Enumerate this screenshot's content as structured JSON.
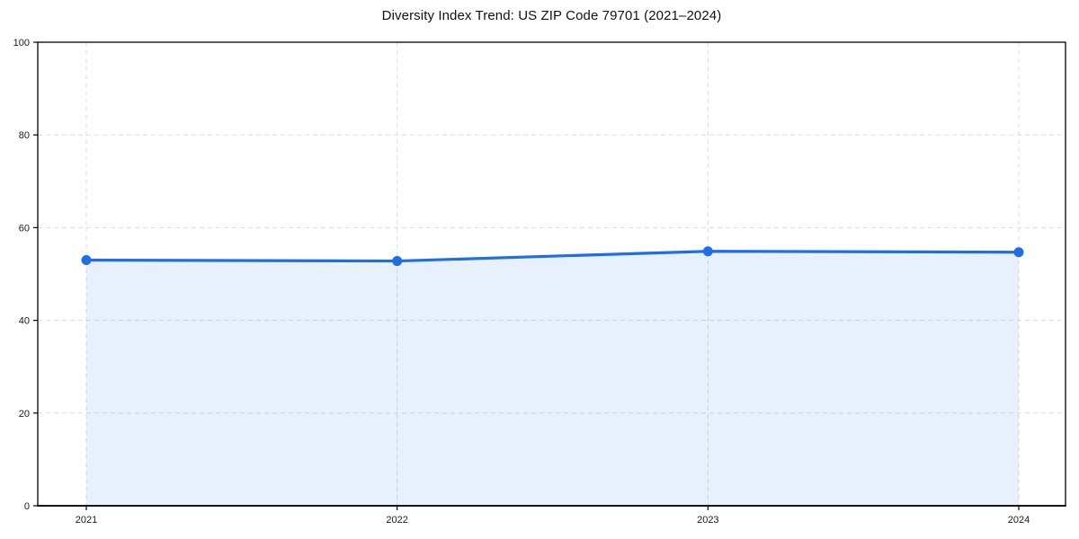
{
  "figure": {
    "background": "#ffffff"
  },
  "chart_data": {
    "type": "area",
    "title": "Diversity Index Trend: US ZIP Code 79701 (2021–2024)",
    "categories": [
      "2021",
      "2022",
      "2023",
      "2024"
    ],
    "series": [
      {
        "name": "Diversity Index",
        "values": [
          53.0,
          52.8,
          54.9,
          54.7
        ]
      }
    ],
    "xlabel": "",
    "ylabel": "",
    "ylim": [
      0,
      100
    ],
    "yticks": [
      0,
      20,
      40,
      60,
      80,
      100
    ],
    "grid": true,
    "grid_style": "dashed",
    "legend_position": "none",
    "line_color": "#1e6ee6",
    "marker": "circle",
    "fill_color": "#1e6ee6",
    "fill_opacity": 0.1,
    "grid_color": "#dcdcdc",
    "axis_color": "#000000",
    "text_color": "#1a1a1a"
  }
}
